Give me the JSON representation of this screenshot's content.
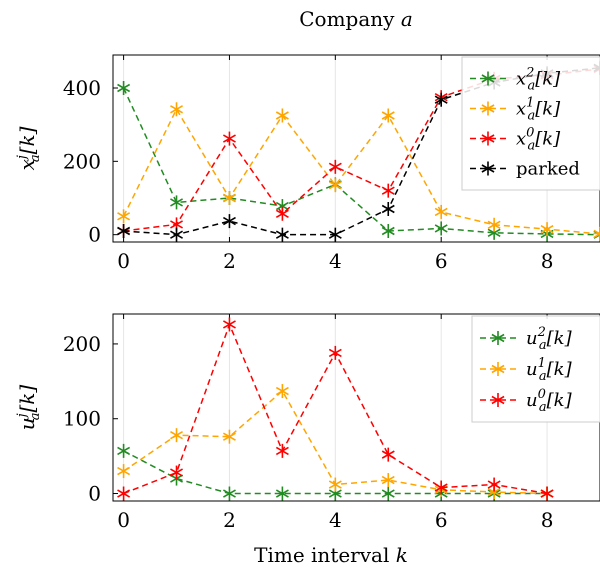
{
  "chart_data": [
    {
      "type": "line",
      "title": "Company a",
      "ylabel": "x_a^j[k]",
      "xlabel": "",
      "xlim": [
        -0.2,
        9
      ],
      "ylim": [
        -20,
        490
      ],
      "xticks": [
        0,
        2,
        4,
        6,
        8
      ],
      "yticks": [
        0,
        200,
        400
      ],
      "grid": "vertical",
      "legend": "top-right",
      "x": [
        0,
        1,
        2,
        3,
        4,
        5,
        6,
        7,
        8,
        9
      ],
      "series": [
        {
          "name": "x_a^2[k]",
          "color": "#228b22",
          "marker": "asterisk",
          "values": [
            400,
            88,
            100,
            78,
            137,
            10,
            17,
            5,
            2,
            0
          ]
        },
        {
          "name": "x_a^1[k]",
          "color": "#ffa500",
          "marker": "asterisk",
          "values": [
            50,
            342,
            100,
            325,
            135,
            325,
            62,
            27,
            15,
            2
          ]
        },
        {
          "name": "x_a^0[k]",
          "color": "#ff0000",
          "marker": "asterisk",
          "values": [
            10,
            28,
            262,
            57,
            185,
            120,
            375,
            425,
            435,
            452
          ]
        },
        {
          "name": "parked",
          "color": "#000000",
          "marker": "asterisk",
          "values": [
            10,
            0,
            37,
            0,
            0,
            70,
            368,
            415,
            440,
            455
          ]
        }
      ]
    },
    {
      "type": "line",
      "title": "",
      "ylabel": "u_a^j[k]",
      "xlabel": "Time interval k",
      "xlim": [
        -0.2,
        9
      ],
      "ylim": [
        -10,
        240
      ],
      "xticks": [
        0,
        2,
        4,
        6,
        8
      ],
      "yticks": [
        0,
        100,
        200
      ],
      "grid": "vertical",
      "legend": "top-right",
      "x": [
        0,
        1,
        2,
        3,
        4,
        5,
        6,
        7,
        8
      ],
      "series": [
        {
          "name": "u_a^2[k]",
          "color": "#228b22",
          "marker": "asterisk",
          "values": [
            57,
            20,
            0,
            0,
            0,
            0,
            0,
            0,
            0
          ]
        },
        {
          "name": "u_a^1[k]",
          "color": "#ffa500",
          "marker": "asterisk",
          "values": [
            30,
            78,
            76,
            137,
            12,
            18,
            5,
            2,
            0
          ]
        },
        {
          "name": "u_a^0[k]",
          "color": "#ff0000",
          "marker": "asterisk",
          "values": [
            0,
            28,
            226,
            57,
            188,
            52,
            8,
            12,
            0
          ]
        }
      ]
    }
  ]
}
